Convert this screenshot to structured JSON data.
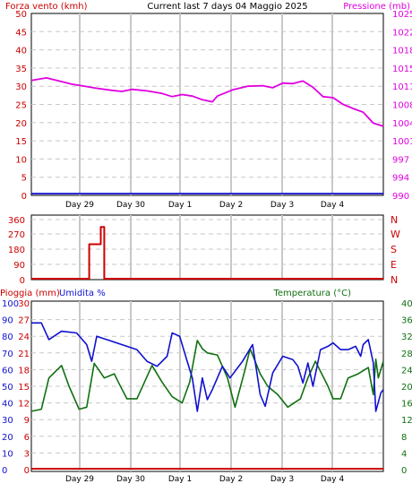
{
  "colors": {
    "wind": "#1010d0",
    "pressure": "#e000e0",
    "direction": "#cc0000",
    "rain": "#cc0000",
    "humidity": "#1010d0",
    "temperature": "#107010",
    "grid": "#c8c8c8",
    "frame": "#000000"
  },
  "header": {
    "left": "Forza vento (kmh)",
    "center": "Current last 7 days 04 Maggio 2025",
    "right": "Pressione (mb)"
  },
  "day_labels": [
    "Day 29",
    "Day 30",
    "Day 1",
    "Day 2",
    "Day 3",
    "Day 4"
  ],
  "chart_data": [
    {
      "type": "line",
      "panel": "wind-pressure",
      "x_range": [
        0,
        7
      ],
      "left_axis": {
        "label": "Forza vento (kmh)",
        "ticks": [
          "0",
          "5",
          "10",
          "15",
          "20",
          "25",
          "30",
          "35",
          "40",
          "45",
          "50"
        ],
        "range": [
          0,
          50
        ]
      },
      "right_axis": {
        "label": "Pressione (mb)",
        "ticks": [
          "990",
          "994",
          "997",
          "1001",
          "1004",
          "1008",
          "1011",
          "1015",
          "1018",
          "1022",
          "1025"
        ],
        "range": [
          990,
          1025
        ]
      },
      "grid": true,
      "series": [
        {
          "name": "Pressione (mb)",
          "axis": "right",
          "points": [
            [
              0,
              1012.1
            ],
            [
              0.3,
              1012.6
            ],
            [
              0.6,
              1011.9
            ],
            [
              0.8,
              1011.4
            ],
            [
              1.0,
              1011.1
            ],
            [
              1.3,
              1010.6
            ],
            [
              1.6,
              1010.2
            ],
            [
              1.8,
              1010.0
            ],
            [
              2.0,
              1010.4
            ],
            [
              2.3,
              1010.1
            ],
            [
              2.6,
              1009.6
            ],
            [
              2.8,
              1009.0
            ],
            [
              3.0,
              1009.4
            ],
            [
              3.2,
              1009.1
            ],
            [
              3.4,
              1008.4
            ],
            [
              3.6,
              1008.0
            ],
            [
              3.7,
              1009.1
            ],
            [
              4.0,
              1010.3
            ],
            [
              4.3,
              1011.0
            ],
            [
              4.6,
              1011.1
            ],
            [
              4.8,
              1010.7
            ],
            [
              5.0,
              1011.6
            ],
            [
              5.2,
              1011.5
            ],
            [
              5.4,
              1012.0
            ],
            [
              5.6,
              1010.8
            ],
            [
              5.8,
              1009.0
            ],
            [
              6.0,
              1008.8
            ],
            [
              6.2,
              1007.5
            ],
            [
              6.4,
              1006.7
            ],
            [
              6.6,
              1006.0
            ],
            [
              6.8,
              1003.9
            ],
            [
              7.0,
              1003.3
            ]
          ]
        },
        {
          "name": "Forza vento (kmh)",
          "axis": "left",
          "points": [
            [
              0,
              0
            ],
            [
              7,
              0
            ]
          ]
        }
      ]
    },
    {
      "type": "line",
      "panel": "wind-direction",
      "x_range": [
        0,
        7
      ],
      "left_axis": {
        "ticks": [
          "0",
          "90",
          "180",
          "270",
          "360"
        ],
        "range": [
          0,
          360
        ]
      },
      "right_axis": {
        "ticks": [
          "N",
          "E",
          "S",
          "W",
          "N"
        ]
      },
      "grid": true,
      "series": [
        {
          "name": "direction",
          "points": [
            [
              0,
              0
            ],
            [
              1.15,
              0
            ],
            [
              1.15,
              210
            ],
            [
              1.38,
              210
            ],
            [
              1.38,
              315
            ],
            [
              1.45,
              315
            ],
            [
              1.45,
              0
            ],
            [
              7,
              0
            ]
          ]
        }
      ]
    },
    {
      "type": "line",
      "panel": "rain-humidity-temperature",
      "x_range": [
        0,
        7
      ],
      "left_axis_outer": {
        "label": "Pioggia (mm)",
        "ticks": [
          "0",
          "3",
          "6",
          "9",
          "12",
          "15",
          "18",
          "21",
          "24",
          "27",
          "30"
        ],
        "range": [
          0,
          30
        ]
      },
      "left_axis_inner": {
        "label": "Umidita %",
        "ticks": [
          "0",
          "10",
          "20",
          "30",
          "40",
          "50",
          "60",
          "70",
          "80",
          "90",
          "100"
        ],
        "range": [
          0,
          100
        ]
      },
      "right_axis": {
        "label": "Temperatura (°C)",
        "ticks": [
          "0",
          "4",
          "8",
          "12",
          "16",
          "20",
          "24",
          "28",
          "32",
          "36",
          "40"
        ],
        "range": [
          0,
          40
        ]
      },
      "grid": true,
      "series": [
        {
          "name": "Umidita %",
          "axis": "left_inner",
          "points": [
            [
              0,
              88
            ],
            [
              0.2,
              88
            ],
            [
              0.35,
              78
            ],
            [
              0.6,
              83
            ],
            [
              0.9,
              82
            ],
            [
              1.1,
              75
            ],
            [
              1.2,
              65
            ],
            [
              1.3,
              80
            ],
            [
              1.6,
              77
            ],
            [
              1.9,
              74
            ],
            [
              2.1,
              72
            ],
            [
              2.3,
              65
            ],
            [
              2.5,
              62
            ],
            [
              2.7,
              68
            ],
            [
              2.8,
              82
            ],
            [
              2.95,
              80
            ],
            [
              3.1,
              65
            ],
            [
              3.2,
              55
            ],
            [
              3.3,
              35
            ],
            [
              3.4,
              55
            ],
            [
              3.5,
              42
            ],
            [
              3.6,
              48
            ],
            [
              3.8,
              62
            ],
            [
              3.95,
              55
            ],
            [
              4.2,
              65
            ],
            [
              4.4,
              75
            ],
            [
              4.55,
              45
            ],
            [
              4.65,
              38
            ],
            [
              4.8,
              58
            ],
            [
              5.0,
              68
            ],
            [
              5.2,
              66
            ],
            [
              5.3,
              62
            ],
            [
              5.4,
              52
            ],
            [
              5.5,
              64
            ],
            [
              5.6,
              50
            ],
            [
              5.75,
              72
            ],
            [
              5.9,
              74
            ],
            [
              6.0,
              76
            ],
            [
              6.15,
              72
            ],
            [
              6.3,
              72
            ],
            [
              6.45,
              74
            ],
            [
              6.55,
              68
            ],
            [
              6.6,
              75
            ],
            [
              6.7,
              78
            ],
            [
              6.8,
              64
            ],
            [
              6.85,
              35
            ],
            [
              6.95,
              46
            ],
            [
              7.0,
              48
            ]
          ]
        },
        {
          "name": "Temperatura (°C)",
          "axis": "right",
          "points": [
            [
              0,
              14
            ],
            [
              0.2,
              14.5
            ],
            [
              0.35,
              22
            ],
            [
              0.6,
              25
            ],
            [
              0.75,
              20
            ],
            [
              0.95,
              14.5
            ],
            [
              1.1,
              15
            ],
            [
              1.25,
              25.5
            ],
            [
              1.45,
              22
            ],
            [
              1.65,
              23
            ],
            [
              1.75,
              20.5
            ],
            [
              1.9,
              17
            ],
            [
              2.1,
              17
            ],
            [
              2.25,
              21
            ],
            [
              2.4,
              25
            ],
            [
              2.6,
              21
            ],
            [
              2.8,
              17.5
            ],
            [
              3.0,
              16
            ],
            [
              3.15,
              21
            ],
            [
              3.3,
              31
            ],
            [
              3.4,
              29
            ],
            [
              3.5,
              28
            ],
            [
              3.7,
              27.5
            ],
            [
              3.9,
              22
            ],
            [
              4.05,
              15
            ],
            [
              4.25,
              24
            ],
            [
              4.35,
              29
            ],
            [
              4.55,
              23
            ],
            [
              4.7,
              20
            ],
            [
              4.9,
              18
            ],
            [
              5.1,
              15
            ],
            [
              5.35,
              17
            ],
            [
              5.5,
              22
            ],
            [
              5.65,
              26
            ],
            [
              5.9,
              20
            ],
            [
              6.0,
              17
            ],
            [
              6.15,
              17
            ],
            [
              6.3,
              22
            ],
            [
              6.5,
              23
            ],
            [
              6.7,
              24.5
            ],
            [
              6.8,
              18
            ],
            [
              6.85,
              26.5
            ],
            [
              6.9,
              22
            ],
            [
              7.0,
              26
            ]
          ]
        },
        {
          "name": "Pioggia (mm)",
          "axis": "left_outer",
          "points": [
            [
              0,
              0
            ],
            [
              7,
              0
            ]
          ]
        }
      ]
    }
  ]
}
